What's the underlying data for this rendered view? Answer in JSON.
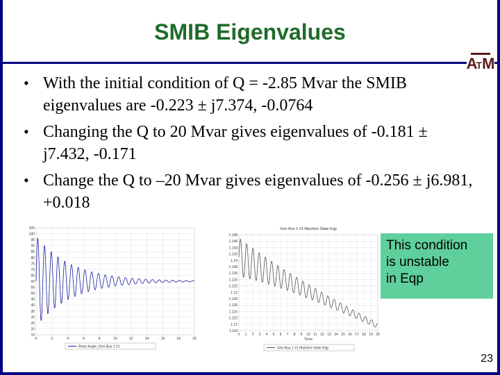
{
  "title": "SMIB Eigenvalues",
  "logo_text": "ATM",
  "bullets": [
    "With the initial condition of Q = -2.85 Mvar the SMIB eigenvalues are -0.223 ± j7.374, -0.0764",
    "Changing the Q to 20 Mvar gives eigenvalues of -0.181 ± j7.432, -0.171",
    "Change the Q to –20 Mvar gives eigenvalues of -0.256 ± j6.981, +0.018"
  ],
  "callout": [
    "This condition",
    "is unstable",
    "in Eqp"
  ],
  "page_number": "23",
  "chart_data": [
    {
      "type": "line",
      "title": "",
      "xlabel": "",
      "ylabel": "",
      "x_ticks": [
        "0",
        "2",
        "4",
        "6",
        "8",
        "10",
        "12",
        "14",
        "16",
        "18",
        "20"
      ],
      "y_ticks": [
        "105",
        "100",
        "95",
        "90",
        "85",
        "80",
        "75",
        "70",
        "65",
        "60",
        "55",
        "50",
        "45",
        "40",
        "35",
        "30",
        "25",
        "20",
        "15"
      ],
      "xlim": [
        0,
        20
      ],
      "ylim": [
        15,
        105
      ],
      "series": [
        {
          "name": "Rotor Angle_Gen Bus 1 #1",
          "color": "#1a1aa6",
          "model": {
            "offset": 60,
            "amplitude": 38,
            "decay": 0.223,
            "omega": 7.374
          }
        }
      ],
      "legend": "bottom"
    },
    {
      "type": "line",
      "title": "Gen Bus 1 #1 Machine State Eqp",
      "xlabel": "Time",
      "ylabel": "",
      "x_ticks": [
        "0",
        "1",
        "2",
        "3",
        "4",
        "5",
        "6",
        "7",
        "8",
        "9",
        "10",
        "11",
        "12",
        "13",
        "14",
        "15",
        "16",
        "17",
        "18",
        "19",
        "20"
      ],
      "y_ticks": [
        "1.148",
        "1.146",
        "1.144",
        "1.142",
        "1.14",
        "1.138",
        "1.136",
        "1.134",
        "1.132",
        "1.13",
        "1.128",
        "1.126",
        "1.124",
        "1.122",
        "1.12",
        "1.118"
      ],
      "xlim": [
        0,
        20
      ],
      "ylim": [
        1.118,
        1.148
      ],
      "series": [
        {
          "name": "Gen Bus 1 #1 Machine State Eqp",
          "color": "#555555",
          "model": {
            "start": 1.141,
            "end": 1.1195,
            "amplitude": 0.006,
            "decay": 0.1,
            "omega": 6.981
          }
        }
      ],
      "legend": "bottom"
    }
  ]
}
